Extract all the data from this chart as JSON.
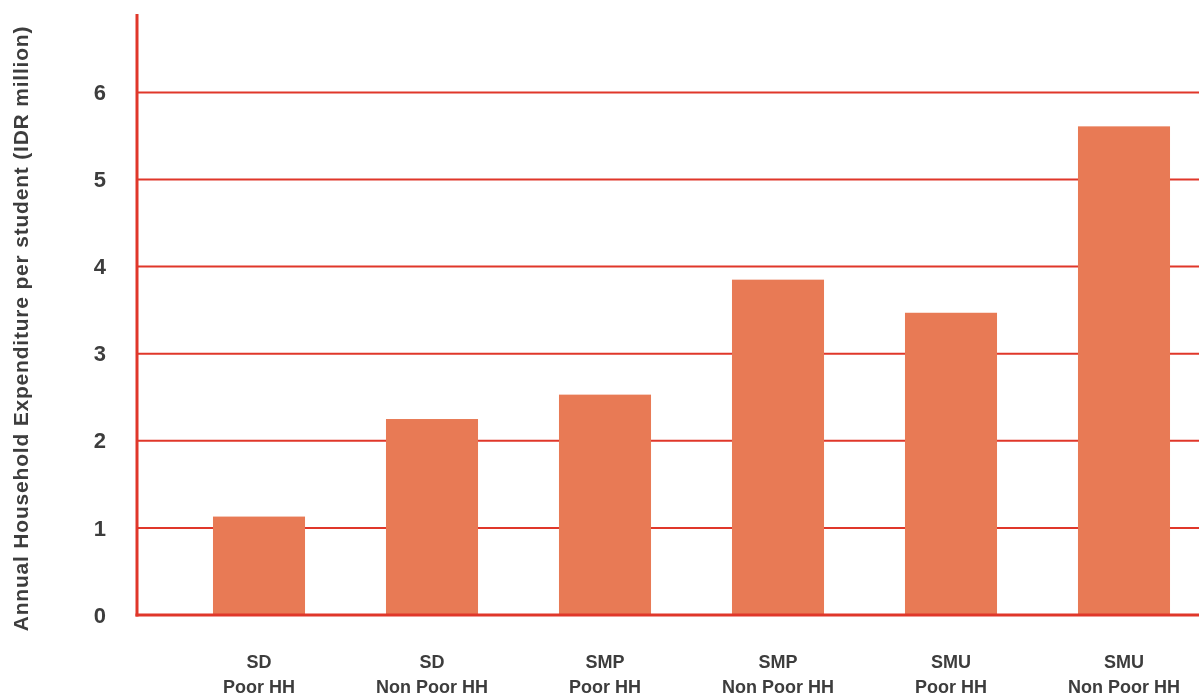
{
  "chart_data": {
    "type": "bar",
    "ylabel": "Annual Household Expenditure per student (IDR million)",
    "categories": [
      "SD\nPoor HH",
      "SD\nNon Poor HH",
      "SMP\nPoor HH",
      "SMP\nNon Poor HH",
      "SMU\nPoor HH",
      "SMU\nNon Poor HH"
    ],
    "values": [
      1.13,
      2.25,
      2.53,
      3.85,
      3.47,
      5.61
    ],
    "color": "#e87a55",
    "ylim": [
      0,
      6.9
    ],
    "yticks": [
      0,
      1,
      2,
      3,
      4,
      5,
      6
    ],
    "grid": "y"
  }
}
